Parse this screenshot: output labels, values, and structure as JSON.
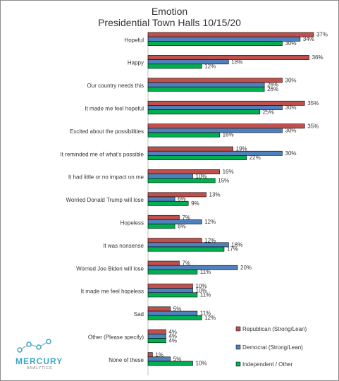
{
  "chart_data": {
    "type": "bar",
    "orientation": "horizontal",
    "title": "Emotion",
    "subtitle": "Presidential Town Halls 10/15/20",
    "categories": [
      "Hopeful",
      "Happy",
      "Our country needs this",
      "It made me feel hopeful",
      "Excited about the possibilities",
      "It reminded me of what's possible",
      "It had little or no impact on me",
      "Worried Donald Trump will lose",
      "Hopeless",
      "It was nonsense",
      "Worried Joe Biden will lose",
      "It made me feel hopeless",
      "Sad",
      "Other (Please specify)",
      "None of these"
    ],
    "series": [
      {
        "name": "Republican (Strong/Lean)",
        "color": "#c0504d",
        "values": [
          37,
          36,
          30,
          35,
          35,
          19,
          16,
          13,
          7,
          12,
          7,
          10,
          5,
          4,
          1
        ],
        "labels": [
          "37%",
          "36%",
          "30%",
          "35%",
          "35%",
          "19%",
          "16%",
          "13%",
          "7%",
          "12%",
          "7%",
          "10%",
          "5%",
          "4%",
          "1%"
        ]
      },
      {
        "name": "Democrat (Strong/Lean)",
        "color": "#4f81bd",
        "values": [
          34,
          18,
          26,
          30,
          30,
          30,
          10,
          6,
          12,
          18,
          20,
          10,
          11,
          4,
          5
        ],
        "labels": [
          "34%",
          "18%",
          "26%",
          "30%",
          "30%",
          "30%",
          "10%",
          "6%",
          "12%",
          "18%",
          "20%",
          "10%",
          "11%",
          "4%",
          "5%"
        ]
      },
      {
        "name": "Independent / Other",
        "color": "#00b050",
        "values": [
          30,
          12,
          26,
          25,
          16,
          22,
          15,
          9,
          6,
          17,
          11,
          11,
          12,
          4,
          10
        ],
        "labels": [
          "30%",
          "12%",
          "26%",
          "25%",
          "16%",
          "22%",
          "15%",
          "9%",
          "6%",
          "17%",
          "11%",
          "11%",
          "12%",
          "4%",
          "10%"
        ]
      }
    ],
    "xlim": [
      0,
      40
    ],
    "legend_position": "right"
  },
  "logo": {
    "name": "MERCURY",
    "sub": "ANALYTICS",
    "color": "#3ba7c4"
  }
}
